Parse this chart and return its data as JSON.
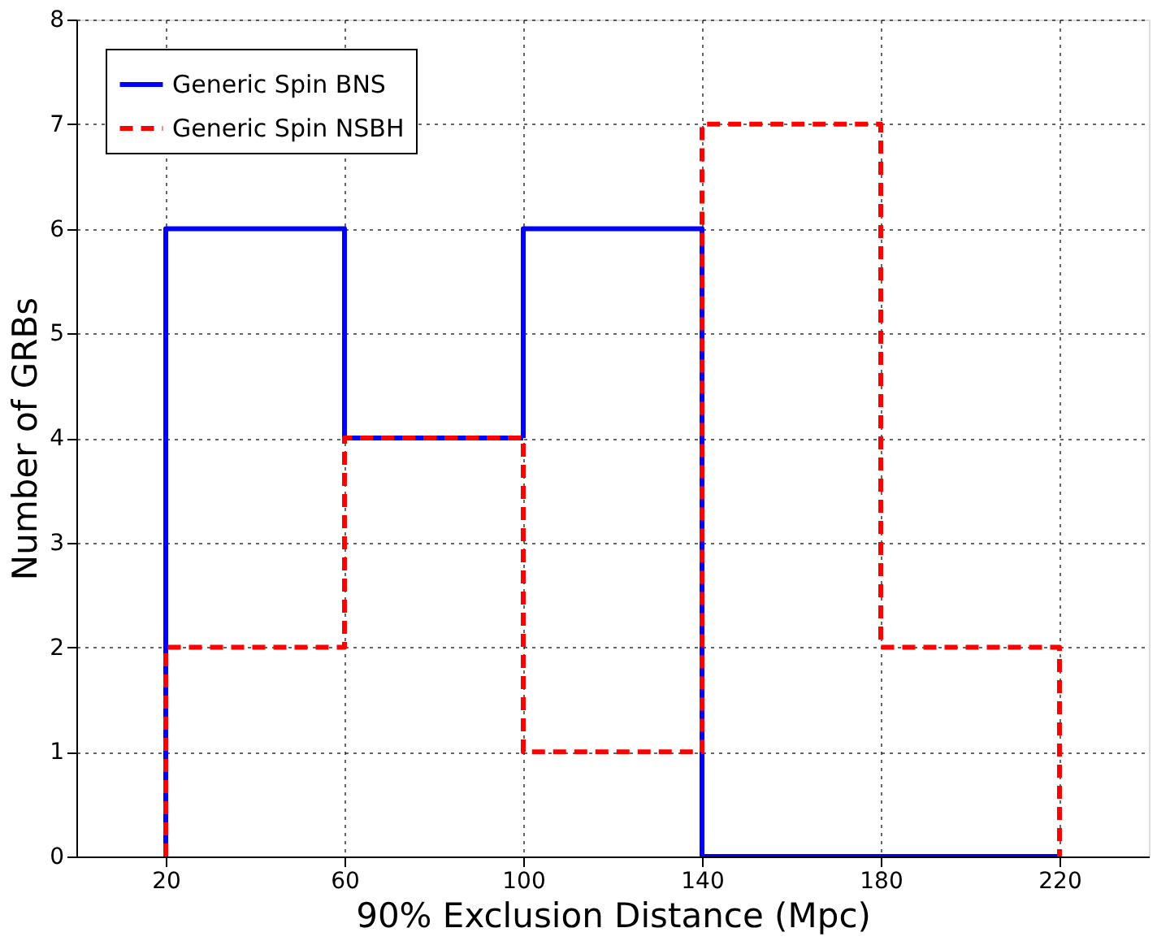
{
  "chart_data": {
    "type": "histogram",
    "xlabel": "90% Exclusion Distance (Mpc)",
    "ylabel": "Number of GRBs",
    "bins": [
      20,
      60,
      100,
      140,
      180,
      220
    ],
    "series": [
      {
        "name": "Generic Spin BNS",
        "color": "#0000ff",
        "values": [
          6,
          4,
          6,
          0,
          0
        ],
        "line_style": "solid"
      },
      {
        "name": "Generic Spin NSBH",
        "color": "#ff0000",
        "values": [
          2,
          4,
          1,
          7,
          2
        ],
        "line_style": "dashed"
      }
    ],
    "xlim": [
      0,
      240
    ],
    "xticks": [
      20,
      60,
      100,
      140,
      180,
      220
    ],
    "ylim": [
      0,
      8
    ],
    "yticks": [
      0,
      1,
      2,
      3,
      4,
      5,
      6,
      7,
      8
    ],
    "grid": true,
    "legend": "top left"
  }
}
